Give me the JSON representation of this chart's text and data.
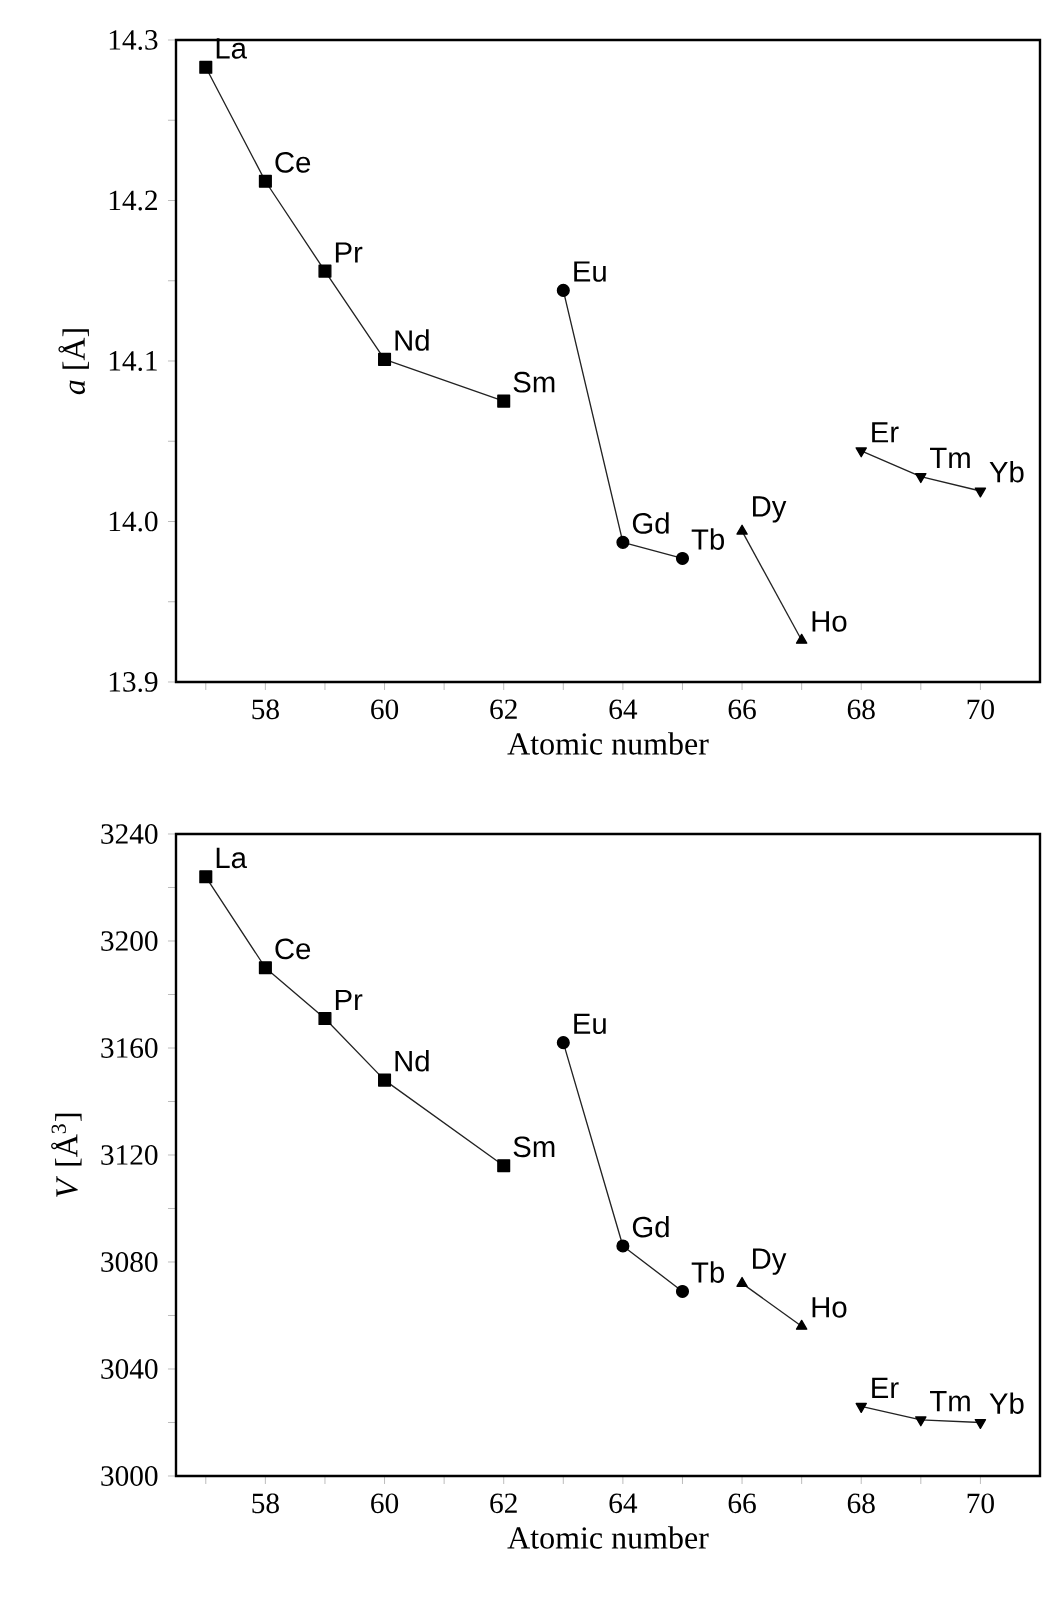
{
  "chart_data": [
    {
      "type": "line",
      "xlabel": "Atomic number",
      "ylabel": "*a* [Å]",
      "xlim": [
        56.5,
        71
      ],
      "ylim": [
        13.9,
        14.3
      ],
      "xticks": [
        {
          "value": 57,
          "label": null
        },
        58,
        {
          "value": 59,
          "label": null
        },
        60,
        {
          "value": 61,
          "label": null
        },
        62,
        {
          "value": 63,
          "label": null
        },
        64,
        {
          "value": 65,
          "label": null
        },
        66,
        {
          "value": 67,
          "label": null
        },
        68,
        {
          "value": 69,
          "label": null
        },
        70
      ],
      "yticks": [
        13.9,
        {
          "value": 13.95,
          "label": null
        },
        {
          "value": 14.0,
          "label": "14.0"
        },
        {
          "value": 14.05,
          "label": null
        },
        14.1,
        {
          "value": 14.15,
          "label": null
        },
        14.2,
        {
          "value": 14.25,
          "label": null
        },
        14.3
      ],
      "series": [
        {
          "color": "#222222",
          "marker": "square",
          "x": [
            57,
            58,
            59,
            60,
            62
          ],
          "values": [
            14.283,
            14.212,
            14.156,
            14.101,
            14.075
          ]
        },
        {
          "color": "#222222",
          "marker": "circle",
          "x": [
            63,
            64,
            65
          ],
          "values": [
            14.144,
            13.987,
            13.977
          ]
        },
        {
          "color": "#222222",
          "marker": "triangle",
          "x": [
            66,
            67
          ],
          "values": [
            13.994,
            13.926
          ]
        },
        {
          "color": "#222222",
          "marker": "triangle_down",
          "x": [
            68,
            69,
            70
          ],
          "values": [
            14.044,
            14.028,
            14.019
          ]
        }
      ],
      "annotations": [
        {
          "text": "La",
          "x": 57,
          "y": 14.283
        },
        {
          "text": "Ce",
          "x": 58,
          "y": 14.212
        },
        {
          "text": "Pr",
          "x": 59,
          "y": 14.156
        },
        {
          "text": "Nd",
          "x": 60,
          "y": 14.101
        },
        {
          "text": "Sm",
          "x": 62,
          "y": 14.075
        },
        {
          "text": "Eu",
          "x": 63,
          "y": 14.144
        },
        {
          "text": "Gd",
          "x": 64,
          "y": 13.987
        },
        {
          "text": "Tb",
          "x": 65,
          "y": 13.977
        },
        {
          "text": "Dy",
          "x": 66,
          "y": 13.994
        },
        {
          "text": "Ho",
          "x": 67,
          "y": 13.926
        },
        {
          "text": "Er",
          "x": 68,
          "y": 14.044
        },
        {
          "text": "Tm",
          "x": 69,
          "y": 14.028
        },
        {
          "text": "Yb",
          "x": 70,
          "y": 14.019
        }
      ]
    },
    {
      "type": "line",
      "xlabel": "Atomic number",
      "ylabel": "*V* [Å$^{3}$]",
      "xlim": [
        56.5,
        71
      ],
      "ylim": [
        3000,
        3240
      ],
      "xticks": [
        {
          "value": 57,
          "label": null
        },
        58,
        {
          "value": 59,
          "label": null
        },
        60,
        {
          "value": 61,
          "label": null
        },
        62,
        {
          "value": 63,
          "label": null
        },
        64,
        {
          "value": 65,
          "label": null
        },
        66,
        {
          "value": 67,
          "label": null
        },
        68,
        {
          "value": 69,
          "label": null
        },
        70
      ],
      "yticks": [
        3000,
        {
          "value": 3020,
          "label": null
        },
        3040,
        {
          "value": 3060,
          "label": null
        },
        3080,
        {
          "value": 3100,
          "label": null
        },
        3120,
        {
          "value": 3140,
          "label": null
        },
        3160,
        {
          "value": 3180,
          "label": null
        },
        3200,
        {
          "value": 3220,
          "label": null
        },
        3240
      ],
      "series": [
        {
          "color": "#222222",
          "marker": "square",
          "x": [
            57,
            58,
            59,
            60,
            62
          ],
          "values": [
            3224,
            3190,
            3171,
            3148,
            3116
          ]
        },
        {
          "color": "#222222",
          "marker": "circle",
          "x": [
            63,
            64,
            65
          ],
          "values": [
            3162,
            3086,
            3069
          ]
        },
        {
          "color": "#222222",
          "marker": "triangle",
          "x": [
            66,
            67
          ],
          "values": [
            3072,
            3056
          ]
        },
        {
          "color": "#222222",
          "marker": "triangle_down",
          "x": [
            68,
            69,
            70
          ],
          "values": [
            3026,
            3021,
            3020
          ]
        }
      ],
      "annotations": [
        {
          "text": "La",
          "x": 57,
          "y": 3224
        },
        {
          "text": "Ce",
          "x": 58,
          "y": 3190
        },
        {
          "text": "Pr",
          "x": 59,
          "y": 3171
        },
        {
          "text": "Nd",
          "x": 60,
          "y": 3148
        },
        {
          "text": "Sm",
          "x": 62,
          "y": 3116
        },
        {
          "text": "Eu",
          "x": 63,
          "y": 3162
        },
        {
          "text": "Gd",
          "x": 64,
          "y": 3086
        },
        {
          "text": "Tb",
          "x": 65,
          "y": 3069
        },
        {
          "text": "Dy",
          "x": 66,
          "y": 3072
        },
        {
          "text": "Ho",
          "x": 67,
          "y": 3056
        },
        {
          "text": "Er",
          "x": 68,
          "y": 3026
        },
        {
          "text": "Tm",
          "x": 69,
          "y": 3021
        },
        {
          "text": "Yb",
          "x": 70,
          "y": 3020
        }
      ]
    }
  ]
}
